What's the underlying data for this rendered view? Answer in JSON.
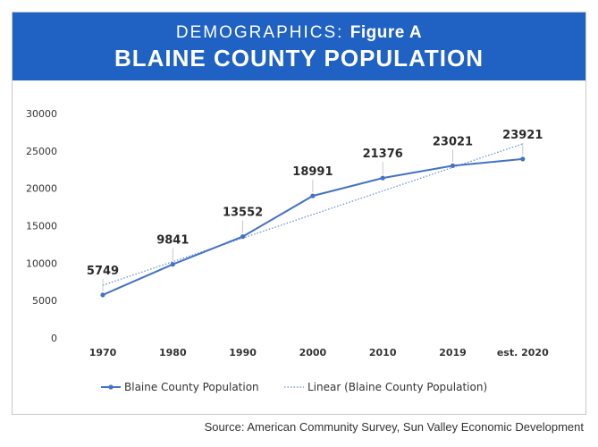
{
  "header": {
    "prefix": "DEMOGRAPHICS:",
    "figure": "Figure A",
    "title": "BLAINE COUNTY POPULATION"
  },
  "chart_data": {
    "type": "line",
    "categories": [
      "1970",
      "1980",
      "1990",
      "2000",
      "2010",
      "2019",
      "est. 2020"
    ],
    "series": [
      {
        "name": "Blaine County Population",
        "values": [
          5749,
          9841,
          13552,
          18991,
          21376,
          23021,
          23921
        ],
        "color": "#4472c4",
        "style": "solid-markers"
      },
      {
        "name": "Linear (Blaine County Population)",
        "values": [
          7047,
          10198,
          13349,
          16500,
          19651,
          22802,
          25953
        ],
        "color": "#5b8bd6",
        "style": "dotted"
      }
    ],
    "y_ticks": [
      0,
      5000,
      10000,
      15000,
      20000,
      25000,
      30000
    ],
    "ylim": [
      0,
      30000
    ],
    "data_labels": [
      "5749",
      "9841",
      "13552",
      "18991",
      "21376",
      "23021",
      "23921"
    ],
    "legend_position": "bottom",
    "grid": false
  },
  "source": "Source: American Community Survey, Sun Valley Economic Development",
  "colors": {
    "banner": "#1f62c4",
    "series": "#4472c4"
  }
}
